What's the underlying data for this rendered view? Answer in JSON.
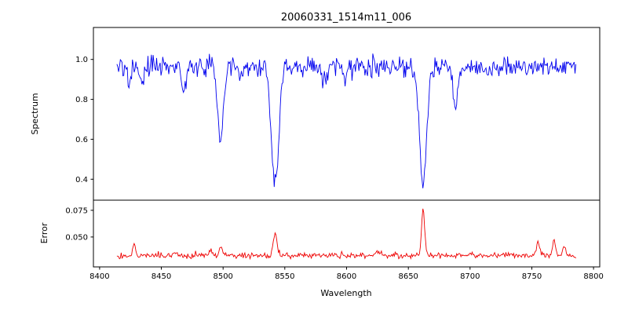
{
  "chart_data": {
    "type": "line",
    "title": "20060331_1514m11_006",
    "xlabel": "Wavelength",
    "x_range": [
      8395,
      8805
    ],
    "x_ticks": [
      8400,
      8450,
      8500,
      8550,
      8600,
      8650,
      8700,
      8750,
      8800
    ],
    "x_tick_labels": [
      "8400",
      "8450",
      "8500",
      "8550",
      "8600",
      "8650",
      "8700",
      "8750",
      "8800"
    ],
    "data_x_range": [
      8414,
      8786
    ],
    "sample_step": 0.7,
    "seed": 20060331,
    "grid": false,
    "legend": "none",
    "subplots": [
      {
        "ylabel": "Spectrum",
        "ylim": [
          0.295,
          1.16
        ],
        "y_ticks": [
          0.4,
          0.6,
          0.8,
          1.0
        ],
        "y_tick_labels": [
          "0.4",
          "0.6",
          "0.8",
          "1.0"
        ],
        "color": "#0000ee",
        "baseline": 0.963,
        "noise_sigma": 0.025,
        "absorption_lines": [
          {
            "center": 8424,
            "depth": 0.08,
            "width": 2.0
          },
          {
            "center": 8434,
            "depth": 0.09,
            "width": 2.0
          },
          {
            "center": 8468,
            "depth": 0.1,
            "width": 2.0
          },
          {
            "center": 8498,
            "depth": 0.375,
            "width": 3.2
          },
          {
            "center": 8514,
            "depth": 0.06,
            "width": 2.0
          },
          {
            "center": 8542,
            "depth": 0.575,
            "width": 4.2
          },
          {
            "center": 8582,
            "depth": 0.09,
            "width": 2.2
          },
          {
            "center": 8598,
            "depth": 0.07,
            "width": 2.0
          },
          {
            "center": 8662,
            "depth": 0.585,
            "width": 4.0
          },
          {
            "center": 8688,
            "depth": 0.19,
            "width": 2.4
          },
          {
            "center": 8713,
            "depth": 0.05,
            "width": 2.0
          }
        ]
      },
      {
        "ylabel": "Error",
        "ylim": [
          0.022,
          0.0845
        ],
        "y_ticks": [
          0.05,
          0.075
        ],
        "y_tick_labels": [
          "0.050",
          "0.075"
        ],
        "color": "#ee0000",
        "baseline": 0.0325,
        "noise_sigma": 0.0013,
        "peaks": [
          {
            "center": 8428,
            "height": 0.011,
            "width": 1.6
          },
          {
            "center": 8462,
            "height": 0.004,
            "width": 1.6
          },
          {
            "center": 8490,
            "height": 0.0045,
            "width": 1.6
          },
          {
            "center": 8498,
            "height": 0.007,
            "width": 1.8
          },
          {
            "center": 8542,
            "height": 0.022,
            "width": 2.0
          },
          {
            "center": 8625,
            "height": 0.0035,
            "width": 3.0
          },
          {
            "center": 8662,
            "height": 0.043,
            "width": 1.8
          },
          {
            "center": 8700,
            "height": 0.003,
            "width": 2.0
          },
          {
            "center": 8755,
            "height": 0.013,
            "width": 1.8
          },
          {
            "center": 8768,
            "height": 0.016,
            "width": 1.6
          },
          {
            "center": 8776,
            "height": 0.01,
            "width": 1.6
          }
        ]
      }
    ]
  }
}
